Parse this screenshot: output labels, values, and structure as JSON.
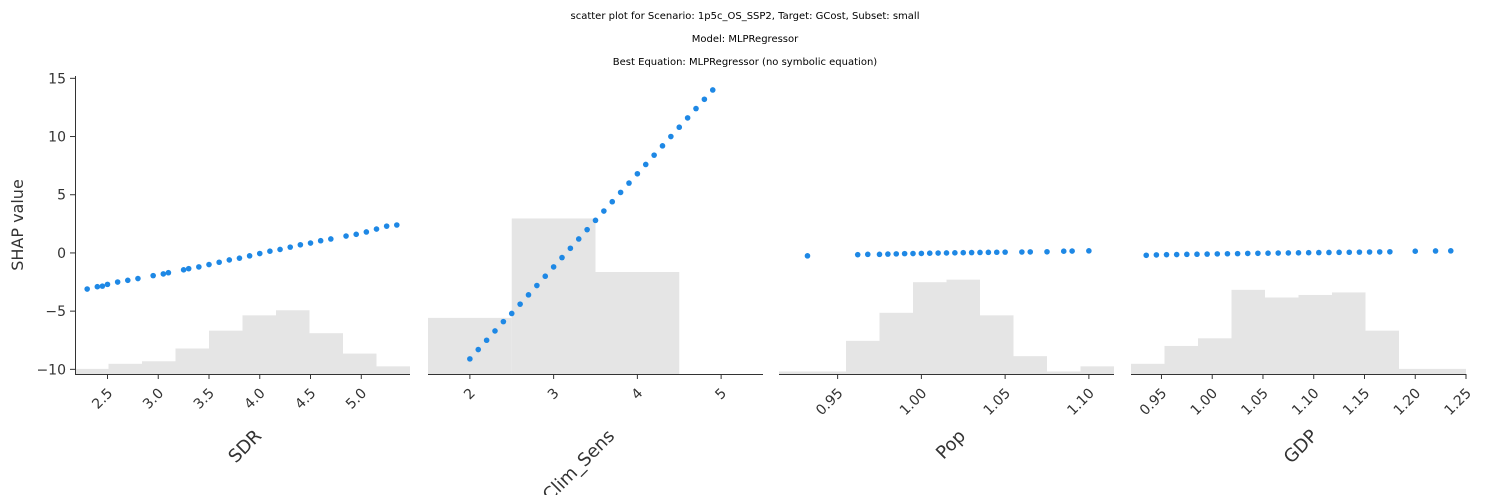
{
  "titles": {
    "line1": "scatter plot for Scenario: 1p5c_OS_SSP2, Target: GCost, Subset: small",
    "line2": "Model: MLPRegressor",
    "line3": "Best Equation: MLPRegressor (no symbolic equation)"
  },
  "colors": {
    "points": "#1e88e5",
    "histogram": "#e5e5e5",
    "axis": "#333333"
  },
  "chart_data": {
    "type": "scatter",
    "ylabel": "SHAP value",
    "ylim": [
      -10.4,
      15.2
    ],
    "yticks": [
      {
        "v": 15,
        "label": "15"
      },
      {
        "v": 10,
        "label": "10"
      },
      {
        "v": 5,
        "label": "5"
      },
      {
        "v": 0,
        "label": "0"
      },
      {
        "v": -5,
        "label": "−5"
      },
      {
        "v": -10,
        "label": "−10"
      }
    ],
    "grid": false,
    "panels": [
      {
        "feature": "SDR",
        "xlabel": "SDR",
        "xlim": [
          2.18,
          5.48
        ],
        "xticks": [
          {
            "v": 2.5,
            "label": "2.5"
          },
          {
            "v": 3.0,
            "label": "3.0"
          },
          {
            "v": 3.5,
            "label": "3.5"
          },
          {
            "v": 4.0,
            "label": "4.0"
          },
          {
            "v": 4.5,
            "label": "4.5"
          },
          {
            "v": 5.0,
            "label": "5.0"
          }
        ],
        "histogram": [
          {
            "x0": 2.18,
            "x1": 2.51,
            "h": 0.02
          },
          {
            "x0": 2.51,
            "x1": 2.84,
            "h": 0.04
          },
          {
            "x0": 2.84,
            "x1": 3.17,
            "h": 0.05
          },
          {
            "x0": 3.17,
            "x1": 3.5,
            "h": 0.1
          },
          {
            "x0": 3.5,
            "x1": 3.83,
            "h": 0.17
          },
          {
            "x0": 3.83,
            "x1": 4.16,
            "h": 0.23
          },
          {
            "x0": 4.16,
            "x1": 4.49,
            "h": 0.25
          },
          {
            "x0": 4.49,
            "x1": 4.82,
            "h": 0.16
          },
          {
            "x0": 4.82,
            "x1": 5.15,
            "h": 0.08
          },
          {
            "x0": 5.15,
            "x1": 5.48,
            "h": 0.03
          }
        ],
        "points": [
          [
            2.3,
            -3.1
          ],
          [
            2.4,
            -2.9
          ],
          [
            2.45,
            -2.85
          ],
          [
            2.5,
            -2.7
          ],
          [
            2.6,
            -2.5
          ],
          [
            2.7,
            -2.35
          ],
          [
            2.8,
            -2.2
          ],
          [
            2.95,
            -1.95
          ],
          [
            3.05,
            -1.8
          ],
          [
            3.1,
            -1.7
          ],
          [
            3.25,
            -1.45
          ],
          [
            3.3,
            -1.35
          ],
          [
            3.4,
            -1.2
          ],
          [
            3.5,
            -1.0
          ],
          [
            3.6,
            -0.8
          ],
          [
            3.7,
            -0.6
          ],
          [
            3.8,
            -0.45
          ],
          [
            3.9,
            -0.25
          ],
          [
            4.0,
            -0.05
          ],
          [
            4.1,
            0.15
          ],
          [
            4.2,
            0.3
          ],
          [
            4.3,
            0.5
          ],
          [
            4.4,
            0.7
          ],
          [
            4.5,
            0.85
          ],
          [
            4.6,
            1.05
          ],
          [
            4.7,
            1.2
          ],
          [
            4.85,
            1.45
          ],
          [
            4.95,
            1.6
          ],
          [
            5.05,
            1.8
          ],
          [
            5.15,
            2.05
          ],
          [
            5.25,
            2.3
          ],
          [
            5.35,
            2.4
          ]
        ]
      },
      {
        "feature": "Clim_Sens",
        "xlabel": "Clim_Sens",
        "xlim": [
          1.5,
          5.5
        ],
        "xticks": [
          {
            "v": 2,
            "label": "2"
          },
          {
            "v": 3,
            "label": "3"
          },
          {
            "v": 4,
            "label": "4"
          },
          {
            "v": 5,
            "label": "5"
          }
        ],
        "histogram": [
          {
            "x0": 1.5,
            "x1": 2.5,
            "h": 0.22
          },
          {
            "x0": 2.5,
            "x1": 3.5,
            "h": 0.61
          },
          {
            "x0": 3.5,
            "x1": 4.5,
            "h": 0.4
          }
        ],
        "points": [
          [
            2.0,
            -9.1
          ],
          [
            2.1,
            -8.3
          ],
          [
            2.2,
            -7.5
          ],
          [
            2.3,
            -6.7
          ],
          [
            2.4,
            -5.9
          ],
          [
            2.5,
            -5.2
          ],
          [
            2.6,
            -4.4
          ],
          [
            2.7,
            -3.6
          ],
          [
            2.8,
            -2.8
          ],
          [
            2.9,
            -2.0
          ],
          [
            3.0,
            -1.2
          ],
          [
            3.1,
            -0.4
          ],
          [
            3.2,
            0.4
          ],
          [
            3.3,
            1.2
          ],
          [
            3.4,
            2.0
          ],
          [
            3.5,
            2.8
          ],
          [
            3.6,
            3.6
          ],
          [
            3.7,
            4.4
          ],
          [
            3.8,
            5.2
          ],
          [
            3.9,
            6.0
          ],
          [
            4.0,
            6.8
          ],
          [
            4.1,
            7.6
          ],
          [
            4.2,
            8.4
          ],
          [
            4.3,
            9.2
          ],
          [
            4.4,
            10.0
          ],
          [
            4.5,
            10.8
          ],
          [
            4.6,
            11.6
          ],
          [
            4.7,
            12.4
          ],
          [
            4.8,
            13.2
          ],
          [
            4.9,
            14.0
          ]
        ]
      },
      {
        "feature": "Pop",
        "xlabel": "Pop",
        "xlim": [
          0.915,
          1.115
        ],
        "xticks": [
          {
            "v": 0.95,
            "label": "0.95"
          },
          {
            "v": 1.0,
            "label": "1.00"
          },
          {
            "v": 1.05,
            "label": "1.05"
          },
          {
            "v": 1.1,
            "label": "1.10"
          }
        ],
        "histogram": [
          {
            "x0": 0.915,
            "x1": 0.935,
            "h": 0.01
          },
          {
            "x0": 0.935,
            "x1": 0.955,
            "h": 0.01
          },
          {
            "x0": 0.955,
            "x1": 0.975,
            "h": 0.13
          },
          {
            "x0": 0.975,
            "x1": 0.995,
            "h": 0.24
          },
          {
            "x0": 0.995,
            "x1": 1.015,
            "h": 0.36
          },
          {
            "x0": 1.015,
            "x1": 1.035,
            "h": 0.37
          },
          {
            "x0": 1.035,
            "x1": 1.055,
            "h": 0.23
          },
          {
            "x0": 1.055,
            "x1": 1.075,
            "h": 0.07
          },
          {
            "x0": 1.075,
            "x1": 1.095,
            "h": 0.01
          },
          {
            "x0": 1.095,
            "x1": 1.115,
            "h": 0.03
          }
        ],
        "points": [
          [
            0.932,
            -0.25
          ],
          [
            0.962,
            -0.15
          ],
          [
            0.968,
            -0.12
          ],
          [
            0.975,
            -0.12
          ],
          [
            0.98,
            -0.1
          ],
          [
            0.985,
            -0.08
          ],
          [
            0.99,
            -0.06
          ],
          [
            0.995,
            -0.05
          ],
          [
            1.0,
            -0.04
          ],
          [
            1.005,
            -0.02
          ],
          [
            1.01,
            -0.01
          ],
          [
            1.015,
            0.0
          ],
          [
            1.02,
            0.01
          ],
          [
            1.025,
            0.02
          ],
          [
            1.03,
            0.03
          ],
          [
            1.035,
            0.04
          ],
          [
            1.04,
            0.05
          ],
          [
            1.045,
            0.06
          ],
          [
            1.05,
            0.07
          ],
          [
            1.06,
            0.08
          ],
          [
            1.065,
            0.09
          ],
          [
            1.075,
            0.1
          ],
          [
            1.085,
            0.15
          ],
          [
            1.09,
            0.16
          ],
          [
            1.1,
            0.18
          ]
        ]
      },
      {
        "feature": "GDP",
        "xlabel": "GDP",
        "xlim": [
          0.92,
          1.25
        ],
        "xticks": [
          {
            "v": 0.95,
            "label": "0.95"
          },
          {
            "v": 1.0,
            "label": "1.00"
          },
          {
            "v": 1.05,
            "label": "1.05"
          },
          {
            "v": 1.1,
            "label": "1.10"
          },
          {
            "v": 1.15,
            "label": "1.15"
          },
          {
            "v": 1.2,
            "label": "1.20"
          },
          {
            "v": 1.25,
            "label": "1.25"
          }
        ],
        "histogram": [
          {
            "x0": 0.92,
            "x1": 0.953,
            "h": 0.04
          },
          {
            "x0": 0.953,
            "x1": 0.986,
            "h": 0.11
          },
          {
            "x0": 0.986,
            "x1": 1.019,
            "h": 0.14
          },
          {
            "x0": 1.019,
            "x1": 1.052,
            "h": 0.33
          },
          {
            "x0": 1.052,
            "x1": 1.085,
            "h": 0.3
          },
          {
            "x0": 1.085,
            "x1": 1.118,
            "h": 0.31
          },
          {
            "x0": 1.118,
            "x1": 1.151,
            "h": 0.32
          },
          {
            "x0": 1.151,
            "x1": 1.184,
            "h": 0.17
          },
          {
            "x0": 1.184,
            "x1": 1.217,
            "h": 0.02
          },
          {
            "x0": 1.217,
            "x1": 1.25,
            "h": 0.02
          }
        ],
        "points": [
          [
            0.935,
            -0.2
          ],
          [
            0.945,
            -0.17
          ],
          [
            0.955,
            -0.15
          ],
          [
            0.965,
            -0.14
          ],
          [
            0.975,
            -0.12
          ],
          [
            0.985,
            -0.11
          ],
          [
            0.995,
            -0.1
          ],
          [
            1.005,
            -0.08
          ],
          [
            1.015,
            -0.07
          ],
          [
            1.025,
            -0.06
          ],
          [
            1.035,
            -0.04
          ],
          [
            1.045,
            -0.03
          ],
          [
            1.055,
            -0.02
          ],
          [
            1.065,
            -0.01
          ],
          [
            1.075,
            0.0
          ],
          [
            1.085,
            0.01
          ],
          [
            1.095,
            0.02
          ],
          [
            1.105,
            0.03
          ],
          [
            1.115,
            0.04
          ],
          [
            1.125,
            0.05
          ],
          [
            1.135,
            0.06
          ],
          [
            1.145,
            0.07
          ],
          [
            1.155,
            0.08
          ],
          [
            1.165,
            0.09
          ],
          [
            1.175,
            0.1
          ],
          [
            1.2,
            0.15
          ],
          [
            1.22,
            0.17
          ],
          [
            1.235,
            0.18
          ]
        ]
      }
    ]
  }
}
